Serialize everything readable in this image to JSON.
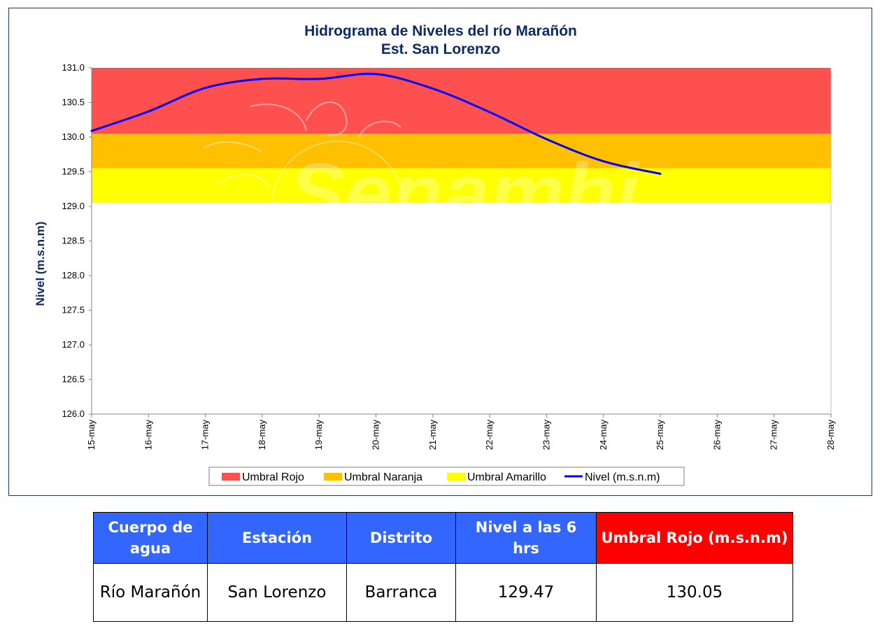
{
  "chart_data": {
    "type": "line",
    "title": "Hidrograma de Niveles del río Marañón",
    "subtitle": "Est. San Lorenzo",
    "ylabel": "Nivel (m.s.n.m)",
    "xlabel": "",
    "ylim": [
      126.0,
      131.0
    ],
    "y_ticks": [
      "126.0",
      "126.5",
      "127.0",
      "127.5",
      "128.0",
      "128.5",
      "129.0",
      "129.5",
      "130.0",
      "130.5",
      "131.0"
    ],
    "categories": [
      "15-may",
      "16-may",
      "17-may",
      "18-may",
      "19-may",
      "20-may",
      "21-may",
      "22-may",
      "23-may",
      "24-may",
      "25-may",
      "26-may",
      "27-may",
      "28-may"
    ],
    "bands": [
      {
        "name": "Umbral Rojo",
        "from": 130.05,
        "to": 131.0,
        "color": "#ff5050"
      },
      {
        "name": "Umbral Naranja",
        "from": 129.55,
        "to": 130.05,
        "color": "#ffc000"
      },
      {
        "name": "Umbral Amarillo",
        "from": 129.05,
        "to": 129.55,
        "color": "#ffff00"
      }
    ],
    "series": [
      {
        "name": "Nivel (m.s.n.m)",
        "color": "#0000ff",
        "x": [
          "15-may",
          "16-may",
          "17-may",
          "18-may",
          "19-may",
          "20-may",
          "21-may",
          "22-may",
          "23-may",
          "24-may",
          "25-may"
        ],
        "values": [
          130.09,
          130.37,
          130.71,
          130.84,
          130.84,
          130.91,
          130.7,
          130.36,
          129.97,
          129.65,
          129.47
        ]
      }
    ],
    "legend": "bottom",
    "watermark": "Senamhi"
  },
  "table": {
    "headers": [
      "Cuerpo de agua",
      "Estación",
      "Distrito",
      "Nivel a las 6 hrs",
      "Umbral Rojo (m.s.n.m)"
    ],
    "row": [
      "Río Marañón",
      "San Lorenzo",
      "Barranca",
      "129.47",
      "130.05"
    ]
  }
}
